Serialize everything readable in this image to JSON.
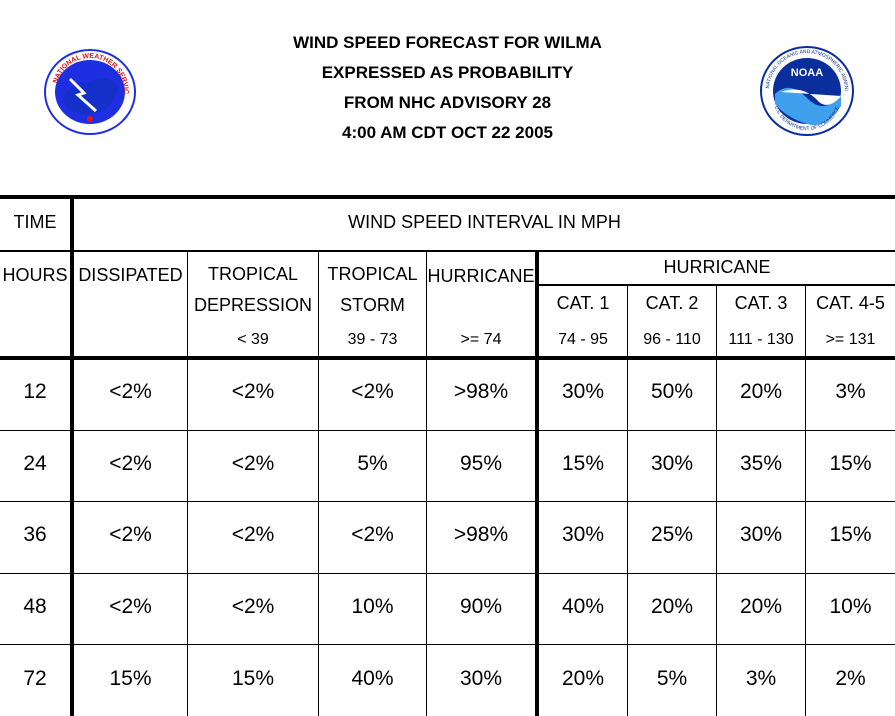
{
  "header": {
    "line1": "WIND SPEED FORECAST FOR WILMA",
    "line2": "EXPRESSED AS PROBABILITY",
    "line3": "FROM NHC ADVISORY   28",
    "line4": "4:00 AM CDT OCT 22 2005"
  },
  "logos": {
    "left_icon": "nws-logo-icon",
    "right_icon": "noaa-logo-icon",
    "nws_text": "NATIONAL WEATHER SERVICE",
    "noaa_text": "NOAA",
    "noaa_ring_text": "NATIONAL OCEANIC AND ATMOSPHERIC ADMINISTRATION",
    "noaa_bottom_text": "U.S. DEPARTMENT OF COMMERCE",
    "colors": {
      "nws_blue": "#1d2fe0",
      "nws_red": "#d81818",
      "noaa_blue": "#0a2f9c",
      "noaa_sky": "#3fa0ee"
    }
  },
  "table": {
    "time_label": "TIME",
    "interval_label": "WIND SPEED INTERVAL IN MPH",
    "hours_label": "HOURS",
    "columns": {
      "dissipated": "DISSIPATED",
      "td_line1": "TROPICAL",
      "td_line2": "DEPRESSION",
      "td_range": "< 39",
      "ts_line1": "TROPICAL",
      "ts_line2": "STORM",
      "ts_range": "39 - 73",
      "hurricane": "HURRICANE",
      "hurricane_range": ">= 74",
      "hurricane_group": "HURRICANE",
      "cat1": "CAT. 1",
      "cat1_range": "74 - 95",
      "cat2": "CAT. 2",
      "cat2_range": "96 - 110",
      "cat3": "CAT. 3",
      "cat3_range": "111 - 130",
      "cat45": "CAT. 4-5",
      "cat45_range": ">= 131"
    },
    "rows": [
      {
        "hours": "12",
        "values": [
          "<2%",
          "<2%",
          "<2%",
          ">98%",
          "30%",
          "50%",
          "20%",
          "3%"
        ]
      },
      {
        "hours": "24",
        "values": [
          "<2%",
          "<2%",
          "5%",
          "95%",
          "15%",
          "30%",
          "35%",
          "15%"
        ]
      },
      {
        "hours": "36",
        "values": [
          "<2%",
          "<2%",
          "<2%",
          ">98%",
          "30%",
          "25%",
          "30%",
          "15%"
        ]
      },
      {
        "hours": "48",
        "values": [
          "<2%",
          "<2%",
          "10%",
          "90%",
          "40%",
          "20%",
          "20%",
          "10%"
        ]
      },
      {
        "hours": "72",
        "values": [
          "15%",
          "15%",
          "40%",
          "30%",
          "20%",
          "5%",
          "3%",
          "2%"
        ]
      }
    ]
  }
}
